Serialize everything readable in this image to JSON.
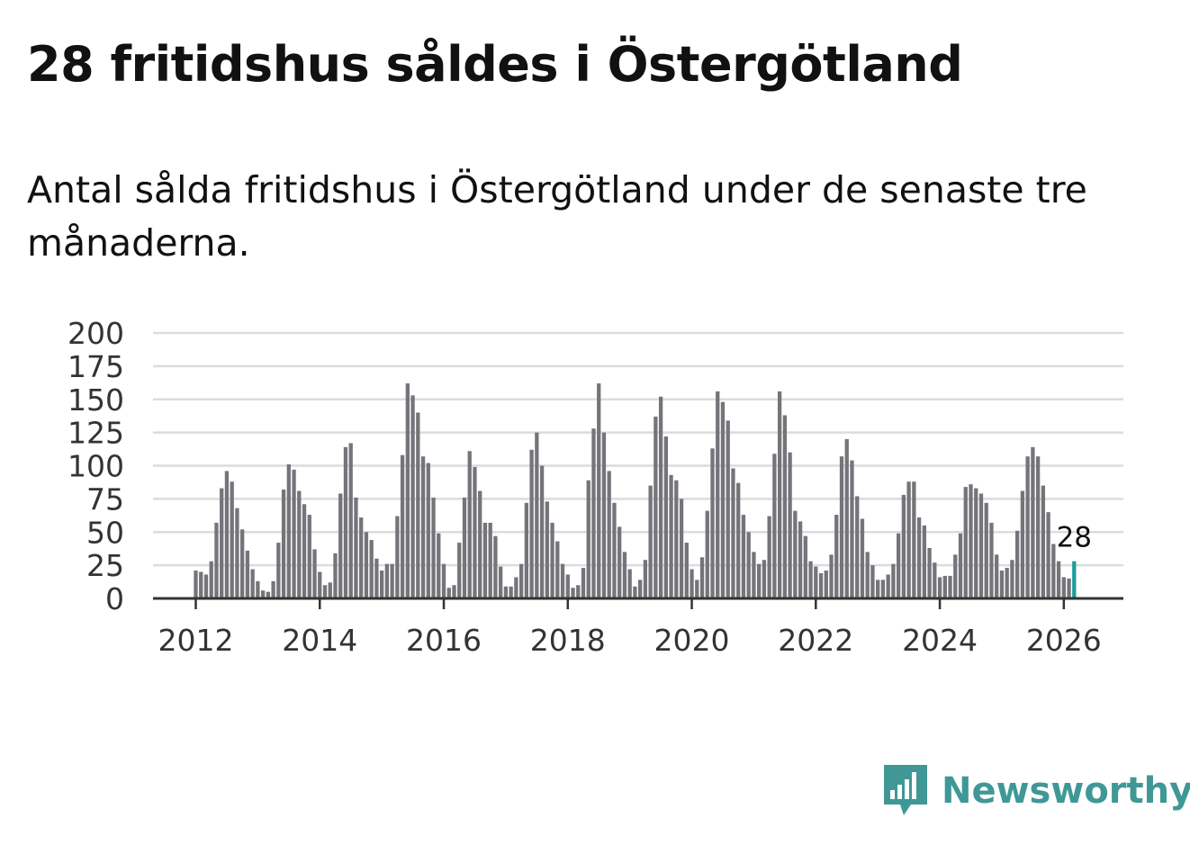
{
  "title": "28 fritidshus såldes i Östergötland",
  "subtitle": "Antal sålda fritidshus i Östergötland under de senaste tre månaderna.",
  "brand": {
    "name": "Newsworthy",
    "icon": "bar-chart-speech-icon",
    "color": "#3f9896"
  },
  "colors": {
    "bar": "#75747a",
    "highlight": "#1c9c9a",
    "grid": "#dcdcdc",
    "axis": "#333333"
  },
  "chart_data": {
    "type": "bar",
    "title": "28 fritidshus såldes i Östergötland",
    "xlabel": "",
    "ylabel": "",
    "ylim": [
      0,
      200
    ],
    "yticks": [
      0,
      25,
      50,
      75,
      100,
      125,
      150,
      175,
      200
    ],
    "xticks": [
      "2012",
      "2014",
      "2016",
      "2018",
      "2020",
      "2022",
      "2024",
      "2026"
    ],
    "start": "2012-01",
    "grid": true,
    "highlight_label": "28",
    "values": [
      21,
      20,
      18,
      28,
      57,
      83,
      96,
      88,
      68,
      52,
      36,
      22,
      13,
      6,
      5,
      13,
      42,
      82,
      101,
      97,
      81,
      71,
      63,
      37,
      20,
      10,
      12,
      34,
      79,
      114,
      117,
      76,
      61,
      50,
      44,
      30,
      21,
      26,
      26,
      62,
      108,
      162,
      153,
      140,
      107,
      102,
      76,
      49,
      26,
      8,
      10,
      42,
      76,
      111,
      99,
      81,
      57,
      57,
      47,
      24,
      9,
      9,
      16,
      26,
      72,
      112,
      125,
      100,
      73,
      57,
      43,
      26,
      18,
      8,
      10,
      23,
      89,
      128,
      162,
      125,
      96,
      72,
      54,
      35,
      22,
      9,
      14,
      29,
      85,
      137,
      152,
      122,
      93,
      89,
      75,
      42,
      22,
      14,
      31,
      66,
      113,
      156,
      148,
      134,
      98,
      87,
      63,
      50,
      35,
      26,
      29,
      62,
      109,
      156,
      138,
      110,
      66,
      58,
      47,
      28,
      24,
      19,
      21,
      33,
      63,
      107,
      120,
      104,
      77,
      60,
      35,
      25,
      14,
      14,
      18,
      26,
      49,
      78,
      88,
      88,
      61,
      55,
      38,
      27,
      16,
      17,
      17,
      33,
      49,
      84,
      86,
      83,
      79,
      72,
      57,
      33,
      21,
      23,
      29,
      51,
      81,
      107,
      114,
      107,
      85,
      65,
      41,
      28,
      16,
      15,
      28
    ]
  }
}
